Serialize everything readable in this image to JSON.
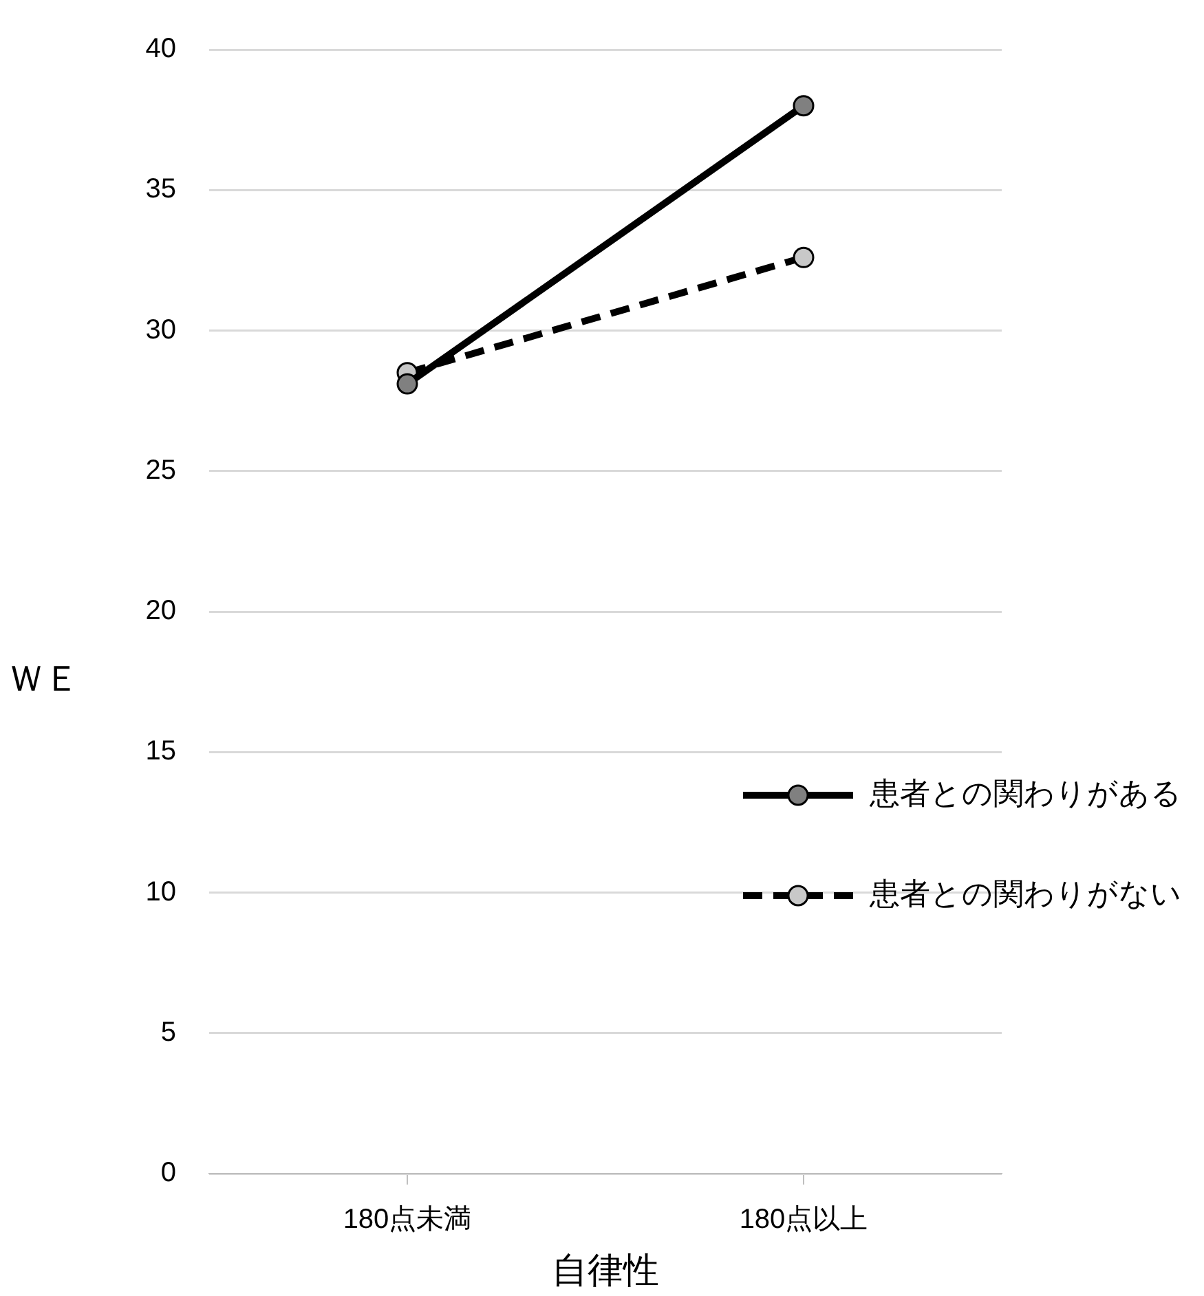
{
  "chart_data": {
    "type": "line",
    "xlabel": "自律性",
    "ylabel": "ＷＥ",
    "categories": [
      "180点未満",
      "180点以上"
    ],
    "series": [
      {
        "name": "患者との関わりがある",
        "color": "#000000",
        "values": [
          28.1,
          38.0
        ],
        "line_style": "solid"
      },
      {
        "name": "患者との関わりがない",
        "color": "#000000",
        "values": [
          28.5,
          32.6
        ],
        "line_style": "dashed"
      }
    ],
    "ylim": [
      0,
      40
    ],
    "yticks": [
      0,
      5,
      10,
      15,
      20,
      25,
      30,
      35,
      40
    ],
    "grid": "y",
    "legend": "right",
    "marker": "circle"
  }
}
